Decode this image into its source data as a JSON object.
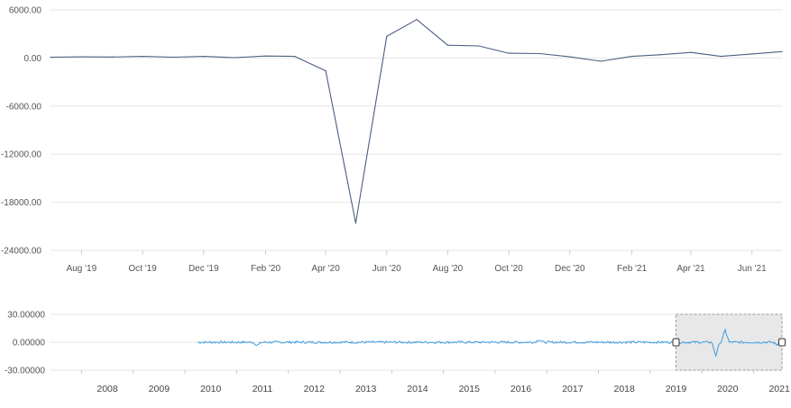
{
  "chart_data": [
    {
      "type": "line",
      "role": "main",
      "x": [
        "2019-07-01",
        "2019-08-01",
        "2019-09-01",
        "2019-10-01",
        "2019-11-01",
        "2019-12-01",
        "2020-01-01",
        "2020-02-01",
        "2020-03-01",
        "2020-04-01",
        "2020-05-01",
        "2020-06-01",
        "2020-07-01",
        "2020-08-01",
        "2020-09-01",
        "2020-10-01",
        "2020-11-01",
        "2020-12-01",
        "2021-01-01",
        "2021-02-01",
        "2021-03-01",
        "2021-04-01",
        "2021-05-01",
        "2021-06-01",
        "2021-07-01"
      ],
      "values": [
        100,
        150,
        120,
        200,
        100,
        200,
        50,
        250,
        200,
        -1600,
        -20600,
        2700,
        4800,
        1600,
        1500,
        600,
        550,
        150,
        -400,
        200,
        400,
        700,
        200,
        500,
        800
      ],
      "ylim": [
        -24000,
        6000
      ],
      "yticks": [
        6000,
        0,
        -6000,
        -12000,
        -18000,
        -24000
      ],
      "ytick_labels": [
        "6000.00",
        "0.00",
        "-6000.00",
        "-12000.00",
        "-18000.00",
        "-24000.00"
      ],
      "xticks": [
        "2019-08-01",
        "2019-10-01",
        "2019-12-01",
        "2020-02-01",
        "2020-04-01",
        "2020-06-01",
        "2020-08-01",
        "2020-10-01",
        "2020-12-01",
        "2021-02-01",
        "2021-04-01",
        "2021-06-01"
      ],
      "xtick_labels": [
        "Aug '19",
        "Oct '19",
        "Dec '19",
        "Feb '20",
        "Apr '20",
        "Jun '20",
        "Aug '20",
        "Oct '20",
        "Dec '20",
        "Feb '21",
        "Apr '21",
        "Jun '21"
      ],
      "grid": true,
      "color": "#4a5f80"
    },
    {
      "type": "line",
      "role": "navigator",
      "x_range_years": [
        2007.4,
        2021.55
      ],
      "series_start_year": 2010.25,
      "noise_amplitude": 1.2,
      "spikes": [
        {
          "year": 2011.4,
          "value": -3.5
        },
        {
          "year": 2016.85,
          "value": 3.0
        },
        {
          "year": 2020.27,
          "value": -14.0
        },
        {
          "year": 2020.45,
          "value": 13.0
        },
        {
          "year": 2021.45,
          "value": -2.5
        }
      ],
      "ylim": [
        -30,
        30
      ],
      "yticks": [
        30,
        0,
        -30
      ],
      "ytick_labels": [
        "30.00000",
        "0.00000",
        "-30.00000"
      ],
      "xtick_labels": [
        "2008",
        "2009",
        "2010",
        "2011",
        "2012",
        "2013",
        "2014",
        "2015",
        "2016",
        "2017",
        "2018",
        "2019",
        "2020",
        "2021"
      ],
      "selection_years": [
        2019.5,
        2021.55
      ],
      "color": "#3d9be0",
      "selection_fill": "#e8e8e8"
    }
  ]
}
